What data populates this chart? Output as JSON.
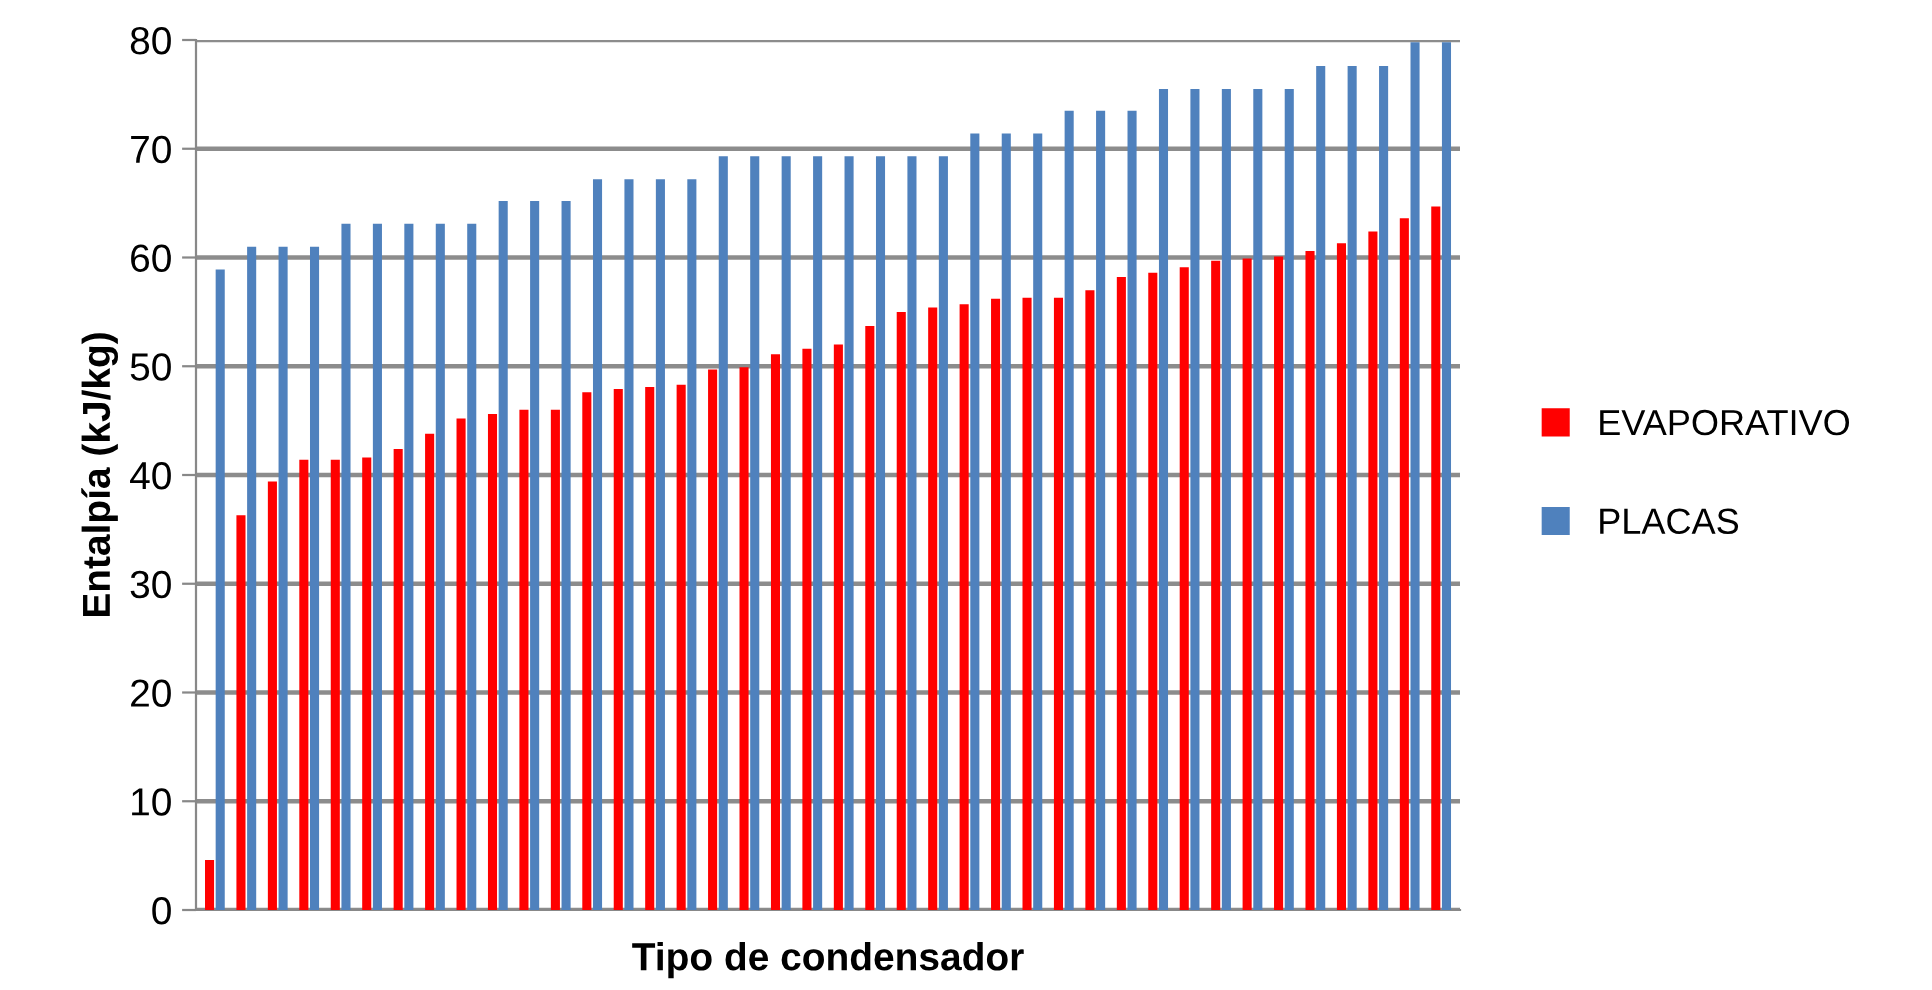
{
  "chart_data": {
    "type": "bar",
    "xlabel": "Tipo de condensador",
    "ylabel": "Entalpía (kJ/kg)",
    "categories": [
      null,
      null,
      null,
      null,
      null,
      null,
      null,
      null,
      null,
      null,
      null,
      null,
      null,
      null,
      null,
      null,
      null,
      null,
      null,
      null,
      null,
      null,
      null,
      null,
      null,
      null,
      null,
      null,
      null,
      null,
      null,
      null,
      null,
      null,
      null,
      null,
      null,
      null,
      null,
      null
    ],
    "series": [
      {
        "name": "EVAPORATIVO",
        "color": "#ff0000",
        "values": [
          4.6,
          36.3,
          39.4,
          41.4,
          41.4,
          41.6,
          42.4,
          43.8,
          45.2,
          45.6,
          46.0,
          46.0,
          47.6,
          47.9,
          48.1,
          48.3,
          49.7,
          49.9,
          51.1,
          51.6,
          52.0,
          53.7,
          55.0,
          55.4,
          55.7,
          56.2,
          56.3,
          56.3,
          57.0,
          58.2,
          58.6,
          59.1,
          59.7,
          59.9,
          60.1,
          60.6,
          61.3,
          62.4,
          63.6,
          64.7
        ]
      },
      {
        "name": "PLACAS",
        "color": "#4f81bd",
        "values": [
          58.9,
          61.0,
          61.0,
          61.0,
          63.1,
          63.1,
          63.1,
          63.1,
          63.1,
          65.2,
          65.2,
          65.2,
          67.2,
          67.2,
          67.2,
          67.2,
          69.3,
          69.3,
          69.3,
          69.3,
          69.3,
          69.3,
          69.3,
          69.3,
          71.4,
          71.4,
          71.4,
          73.5,
          73.5,
          73.5,
          75.5,
          75.5,
          75.5,
          75.5,
          75.5,
          77.6,
          77.6,
          77.6,
          79.8,
          79.8
        ]
      }
    ],
    "ylim": [
      0,
      80
    ],
    "yticks": [
      0,
      10,
      20,
      30,
      40,
      50,
      60,
      70,
      80
    ],
    "grid": "y",
    "legend": "right"
  }
}
